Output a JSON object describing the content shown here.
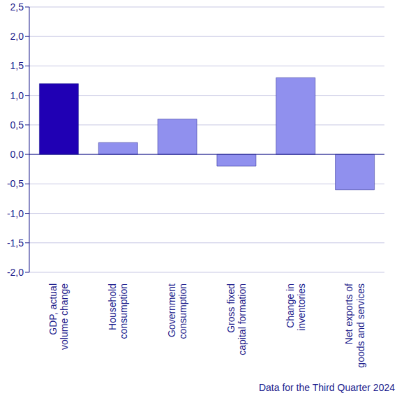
{
  "chart_data": {
    "type": "bar",
    "categories": [
      "GDP, actual\nvolume change",
      "Household\nconsumption",
      "Government\nconsumption",
      "Gross fixed\ncapital formation",
      "Change in\ninventories",
      "Net exports of\ngoods and services"
    ],
    "values": [
      1.2,
      0.2,
      0.6,
      -0.2,
      1.3,
      -0.6
    ],
    "colors": [
      "#2000b4",
      "#9090ee",
      "#9090ee",
      "#9090ee",
      "#9090ee",
      "#9090ee"
    ],
    "ylim": [
      -2,
      2.5
    ],
    "yticks": [
      {
        "value": -2,
        "label": "-2,0"
      },
      {
        "value": -1.5,
        "label": "-1,5"
      },
      {
        "value": -1,
        "label": "-1,0"
      },
      {
        "value": -0.5,
        "label": "-0,5"
      },
      {
        "value": 0,
        "label": "0,0"
      },
      {
        "value": 0.5,
        "label": "0,5"
      },
      {
        "value": 1,
        "label": "1,0"
      },
      {
        "value": 1.5,
        "label": "1,5"
      },
      {
        "value": 2,
        "label": "2,0"
      },
      {
        "value": 2.5,
        "label": "2,5"
      }
    ],
    "grid": true,
    "annotations": [
      "Data for the Third Quarter 2024"
    ]
  }
}
